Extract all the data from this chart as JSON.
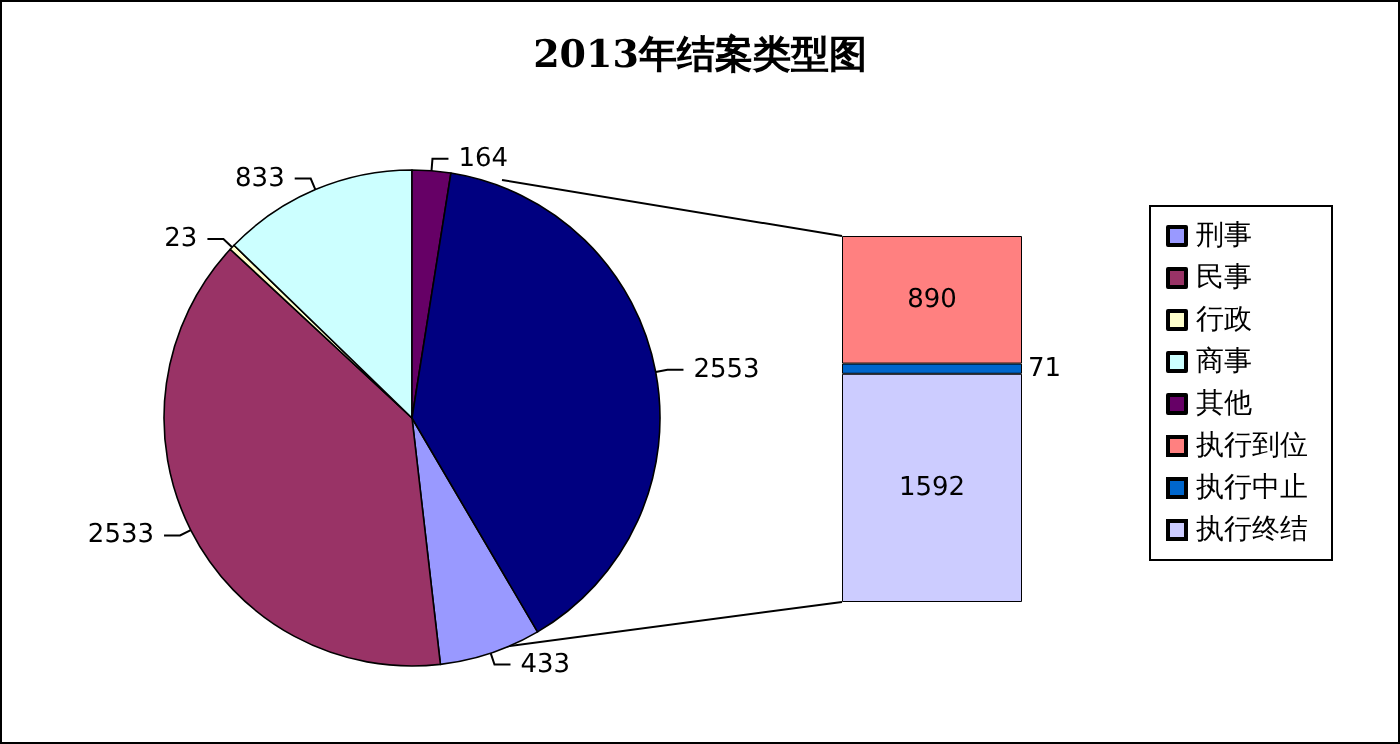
{
  "chart_data": [
    {
      "type": "pie",
      "title": "2013年结案类型图",
      "categories": [
        "刑事",
        "民事",
        "行政",
        "商事",
        "其他",
        null
      ],
      "values": [
        433,
        2533,
        23,
        833,
        164,
        2553
      ],
      "colors": [
        "#9999ff",
        "#993366",
        "#ffffcc",
        "#ccffff",
        "#660066",
        "#000080"
      ],
      "data_labels": true,
      "legend": "right"
    },
    {
      "type": "bar",
      "stacked": true,
      "categories": [
        null
      ],
      "series": [
        {
          "name": "执行终结",
          "color": "#ccccff",
          "values": [
            1592
          ]
        },
        {
          "name": "执行中止",
          "color": "#0066cc",
          "values": [
            71
          ]
        },
        {
          "name": "执行到位",
          "color": "#ff8080",
          "values": [
            890
          ]
        }
      ],
      "data_labels": true,
      "legend": "right"
    }
  ]
}
